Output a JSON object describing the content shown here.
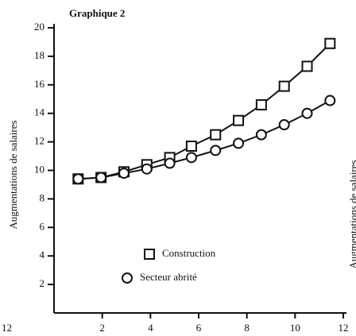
{
  "chart_data": {
    "type": "line",
    "title": "Graphique 2",
    "y_label": "Augmentations de salaires",
    "x": [
      1,
      1.95,
      2.9,
      3.85,
      4.8,
      5.7,
      6.7,
      7.65,
      8.6,
      9.55,
      10.5,
      11.45
    ],
    "series": [
      {
        "name": "Construction",
        "marker": "square",
        "color": "#111111",
        "values": [
          9.4,
          9.5,
          9.9,
          10.4,
          10.9,
          11.7,
          12.5,
          13.5,
          14.6,
          15.9,
          17.3,
          18.9
        ]
      },
      {
        "name": "Secteur abrité",
        "marker": "circle",
        "color": "#111111",
        "values": [
          9.4,
          9.5,
          9.8,
          10.1,
          10.5,
          10.9,
          11.4,
          11.9,
          12.5,
          13.2,
          14.0,
          14.9
        ]
      }
    ],
    "xlim": [
      0,
      12
    ],
    "xticks": [
      2,
      4,
      6,
      8,
      10,
      12
    ],
    "ylim": [
      0,
      20
    ],
    "yticks": [
      2,
      4,
      6,
      8,
      10,
      12,
      14,
      16,
      18,
      20
    ],
    "fragments": [
      "12",
      "Augmentations de salaires"
    ]
  }
}
